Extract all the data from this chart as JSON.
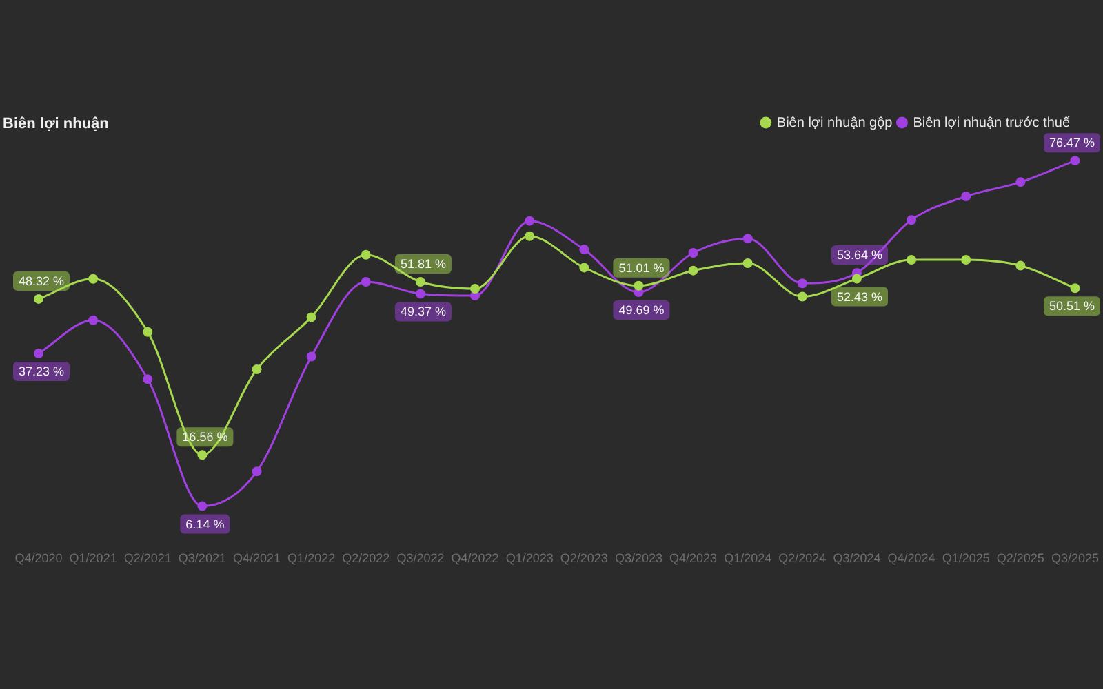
{
  "chart_data": {
    "type": "line",
    "title": "Biên lợi nhuận",
    "categories": [
      "Q4/2020",
      "Q1/2021",
      "Q2/2021",
      "Q3/2021",
      "Q4/2021",
      "Q1/2022",
      "Q2/2022",
      "Q3/2022",
      "Q4/2022",
      "Q1/2023",
      "Q2/2023",
      "Q3/2023",
      "Q4/2023",
      "Q1/2024",
      "Q2/2024",
      "Q3/2024",
      "Q4/2024",
      "Q1/2025",
      "Q2/2025",
      "Q3/2025"
    ],
    "series": [
      {
        "name": "Biên lợi nhuận gộp",
        "color": "#a6d94e",
        "values": [
          48.32,
          52.4,
          41.6,
          16.56,
          34.0,
          44.6,
          57.3,
          51.81,
          50.4,
          61.1,
          54.7,
          51.01,
          54.1,
          55.6,
          48.8,
          52.43,
          56.3,
          56.3,
          55.1,
          50.51
        ],
        "value_labels": [
          "48.32 %",
          null,
          null,
          "16.56 %",
          null,
          null,
          null,
          "51.81 %",
          null,
          null,
          null,
          "51.01 %",
          null,
          null,
          null,
          "52.43 %",
          null,
          null,
          null,
          "50.51 %"
        ]
      },
      {
        "name": "Biên lợi nhuận trước thuế",
        "color": "#a040e0",
        "values": [
          37.23,
          44.0,
          32.0,
          6.14,
          13.2,
          36.6,
          51.8,
          49.37,
          49.0,
          64.2,
          58.4,
          49.69,
          57.7,
          60.6,
          51.5,
          53.64,
          64.4,
          69.2,
          72.1,
          76.47
        ],
        "value_labels": [
          "37.23 %",
          null,
          null,
          "6.14 %",
          null,
          null,
          null,
          "49.37 %",
          null,
          null,
          null,
          "49.69 %",
          null,
          null,
          null,
          "53.64 %",
          null,
          null,
          null,
          "76.47 %"
        ]
      }
    ],
    "relative": false,
    "grid": false,
    "legend": "top right",
    "marker": "circle",
    "line_style": "solid"
  }
}
